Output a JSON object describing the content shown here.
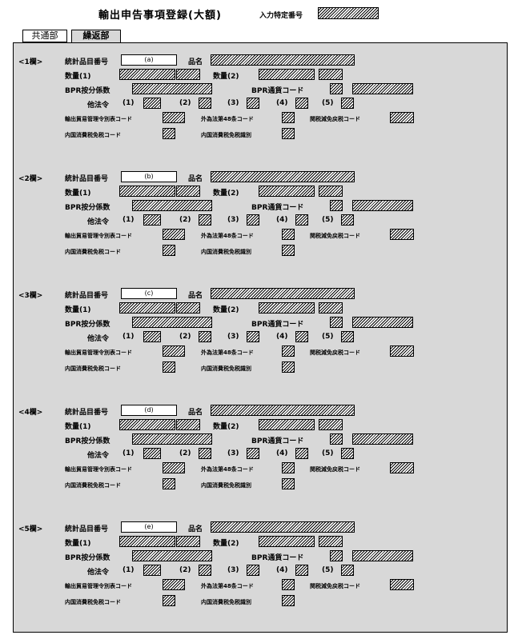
{
  "header": {
    "title": "輸出申告事項登録(大額)",
    "id_label": "入力特定番号"
  },
  "tabs": [
    {
      "label": "共通部"
    },
    {
      "label": "繰返部"
    }
  ],
  "blocks": [
    {
      "label": "<1欄>",
      "code": "(a)"
    },
    {
      "label": "<2欄>",
      "code": "(b)"
    },
    {
      "label": "<3欄>",
      "code": "(c)"
    },
    {
      "label": "<4欄>",
      "code": "(d)"
    },
    {
      "label": "<5欄>",
      "code": "(e)"
    }
  ],
  "labels": {
    "stat_code": "統計品目番号",
    "item_name": "品名",
    "qty1": "数量(1)",
    "qty2": "数量(2)",
    "bpr": "BPR按分係数",
    "bpr_currency": "BPR通貨コード",
    "other_law": "他法令",
    "law1": "(1)",
    "law2": "(2)",
    "law3": "(3)",
    "law4": "(4)",
    "law5": "(5)",
    "trade_code": "輸出貿易管理令別表コード",
    "forex_code": "外為法第48条コード",
    "customs_code": "関税減免戻税コード",
    "domestic_code": "内国消費税免税コード",
    "domestic_id": "内国消費税免税識別"
  },
  "colors": {
    "panel": "#d8d8d8",
    "border": "#000000"
  }
}
